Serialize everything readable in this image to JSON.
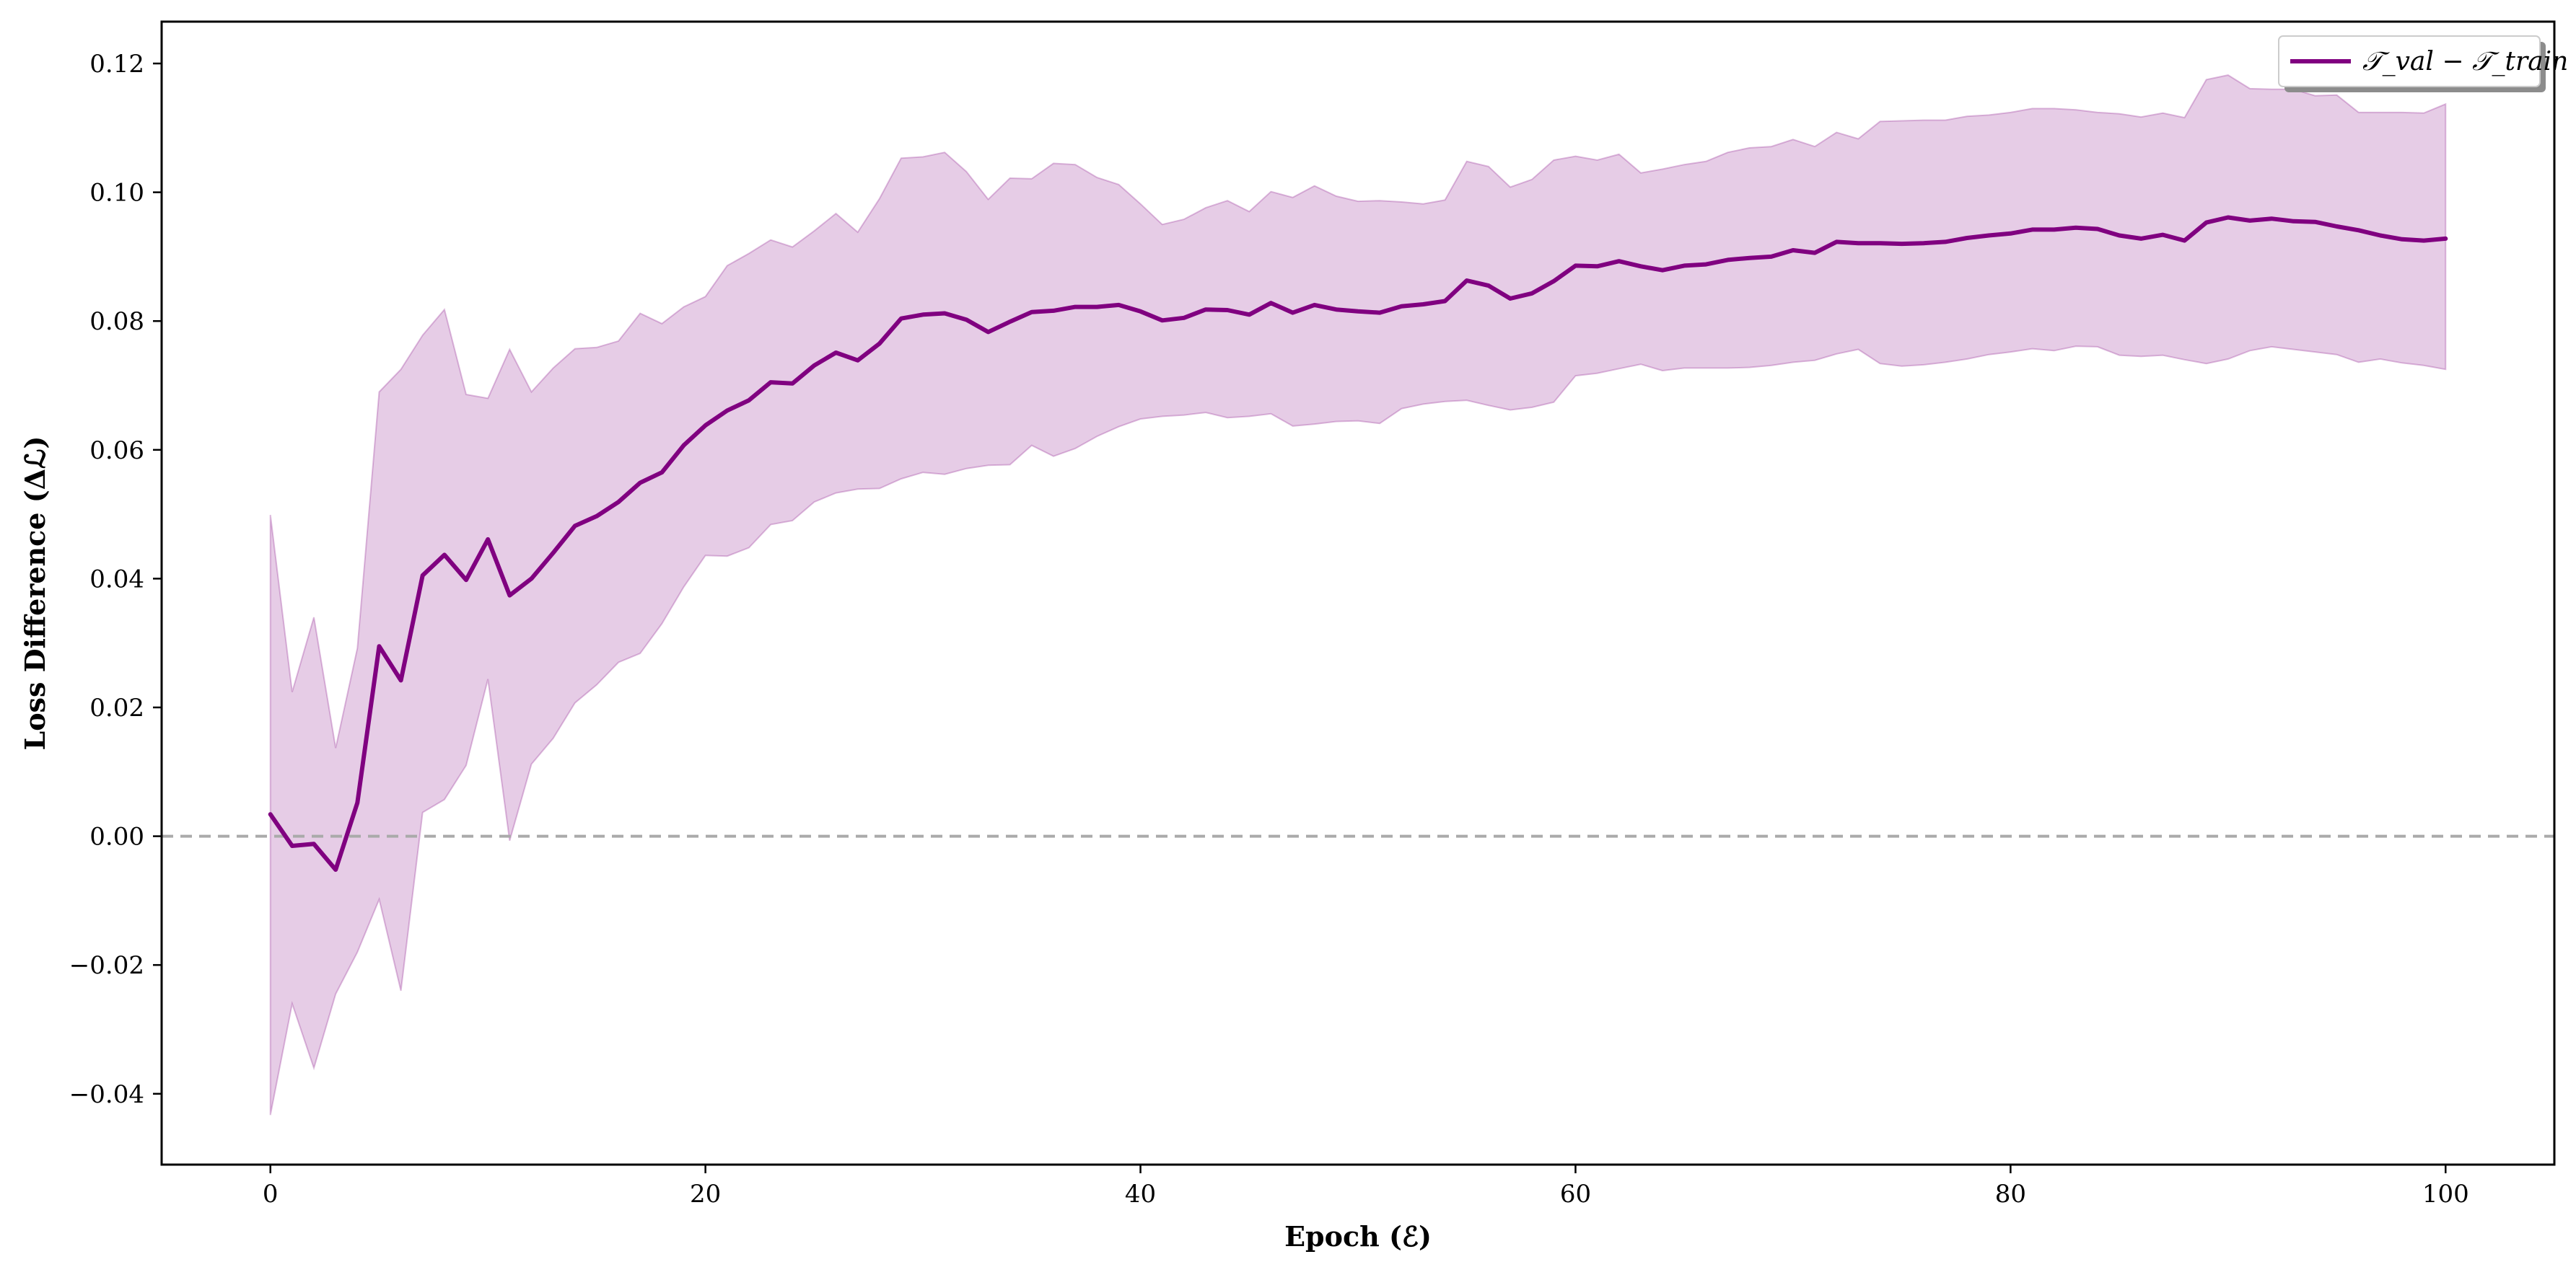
{
  "chart_data": {
    "type": "line",
    "title": "",
    "xlabel": "Epoch (ℰ)",
    "ylabel": "Loss Difference (Δℒ)",
    "xlim": [
      -5,
      105
    ],
    "ylim": [
      -0.051,
      0.1265
    ],
    "x_ticks": [
      0,
      20,
      40,
      60,
      80,
      100
    ],
    "x_tick_labels": [
      "0",
      "20",
      "40",
      "60",
      "80",
      "100"
    ],
    "y_ticks": [
      -0.04,
      -0.02,
      0.0,
      0.02,
      0.04,
      0.06,
      0.08,
      0.1,
      0.12
    ],
    "y_tick_labels": [
      "−0.04",
      "−0.02",
      "0.00",
      "0.02",
      "0.04",
      "0.06",
      "0.08",
      "0.10",
      "0.12"
    ],
    "grid": false,
    "legend_position": "top-right",
    "colors": {
      "line": "#800080",
      "band": "#800080",
      "band_opacity": 0.2,
      "reference": "#aaaaaa"
    },
    "reference_line": {
      "y": 0.0,
      "style": "dashed"
    },
    "series": [
      {
        "name": "𝒯_val − 𝒯_train",
        "x": [
          0,
          1,
          2,
          3,
          4,
          5,
          6,
          7,
          8,
          9,
          10,
          11,
          12,
          13,
          14,
          15,
          16,
          17,
          18,
          19,
          20,
          21,
          22,
          23,
          24,
          25,
          26,
          27,
          28,
          29,
          30,
          31,
          32,
          33,
          34,
          35,
          36,
          37,
          38,
          39,
          40,
          41,
          42,
          43,
          44,
          45,
          46,
          47,
          48,
          49,
          50,
          51,
          52,
          53,
          54,
          55,
          56,
          57,
          58,
          59,
          60,
          61,
          62,
          63,
          64,
          65,
          66,
          67,
          68,
          69,
          70,
          71,
          72,
          73,
          74,
          75,
          76,
          77,
          78,
          79,
          80,
          81,
          82,
          83,
          84,
          85,
          86,
          87,
          88,
          89,
          90,
          91,
          92,
          93,
          94,
          95,
          96,
          97,
          98,
          99,
          100
        ],
        "values": [
          0.0034,
          -0.0015,
          -0.0012,
          -0.0052,
          0.0052,
          0.0295,
          0.0242,
          0.0405,
          0.0437,
          0.0398,
          0.0461,
          0.0374,
          0.04,
          0.044,
          0.0482,
          0.0497,
          0.0519,
          0.0549,
          0.0565,
          0.0607,
          0.0638,
          0.0661,
          0.0677,
          0.0705,
          0.0703,
          0.0731,
          0.0751,
          0.0739,
          0.0765,
          0.0804,
          0.081,
          0.0812,
          0.0802,
          0.0783,
          0.0799,
          0.0814,
          0.0816,
          0.0822,
          0.0822,
          0.0825,
          0.0815,
          0.0801,
          0.0805,
          0.0818,
          0.0817,
          0.081,
          0.0828,
          0.0813,
          0.0825,
          0.0818,
          0.0815,
          0.0813,
          0.0823,
          0.0826,
          0.0831,
          0.0863,
          0.0855,
          0.0835,
          0.0843,
          0.0862,
          0.0886,
          0.0885,
          0.0893,
          0.0885,
          0.0879,
          0.0886,
          0.0888,
          0.0895,
          0.0898,
          0.09,
          0.091,
          0.0906,
          0.0923,
          0.0921,
          0.0921,
          0.092,
          0.0921,
          0.0923,
          0.0929,
          0.0933,
          0.0936,
          0.0942,
          0.0942,
          0.0945,
          0.0943,
          0.0933,
          0.0928,
          0.0934,
          0.0925,
          0.0953,
          0.0961,
          0.0956,
          0.0959,
          0.0955,
          0.0954,
          0.0947,
          0.0941,
          0.0933,
          0.0927,
          0.0925,
          0.0928
        ],
        "lower": [
          -0.0433,
          -0.026,
          -0.036,
          -0.0245,
          -0.018,
          -0.0098,
          -0.024,
          0.0037,
          0.0057,
          0.011,
          0.0244,
          -0.0007,
          0.0112,
          0.0152,
          0.0207,
          0.0235,
          0.027,
          0.0284,
          0.033,
          0.0387,
          0.0436,
          0.0435,
          0.0448,
          0.0484,
          0.049,
          0.0519,
          0.0533,
          0.0539,
          0.054,
          0.0555,
          0.0565,
          0.0562,
          0.0571,
          0.0576,
          0.0577,
          0.0607,
          0.059,
          0.0602,
          0.0621,
          0.0636,
          0.0648,
          0.0652,
          0.0654,
          0.0658,
          0.065,
          0.0652,
          0.0656,
          0.0637,
          0.064,
          0.0644,
          0.0645,
          0.0641,
          0.0664,
          0.0671,
          0.0675,
          0.0677,
          0.0669,
          0.0662,
          0.0666,
          0.0674,
          0.0715,
          0.0719,
          0.0726,
          0.0733,
          0.0723,
          0.0727,
          0.0727,
          0.0727,
          0.0728,
          0.0731,
          0.0736,
          0.0739,
          0.0749,
          0.0756,
          0.0734,
          0.073,
          0.0732,
          0.0736,
          0.0741,
          0.0748,
          0.0752,
          0.0757,
          0.0754,
          0.0761,
          0.076,
          0.0747,
          0.0745,
          0.0747,
          0.074,
          0.0734,
          0.0741,
          0.0754,
          0.076,
          0.0756,
          0.0752,
          0.0748,
          0.0736,
          0.0741,
          0.0735,
          0.0731,
          0.0725
        ],
        "upper": [
          0.0499,
          0.0224,
          0.034,
          0.0137,
          0.0292,
          0.069,
          0.0725,
          0.0778,
          0.0818,
          0.0686,
          0.068,
          0.0756,
          0.069,
          0.0727,
          0.0757,
          0.0759,
          0.0769,
          0.0812,
          0.0796,
          0.0822,
          0.0838,
          0.0886,
          0.0905,
          0.0926,
          0.0915,
          0.094,
          0.0967,
          0.0938,
          0.099,
          0.1053,
          0.1055,
          0.1062,
          0.1032,
          0.0989,
          0.1022,
          0.1021,
          0.1045,
          0.1043,
          0.1023,
          0.1012,
          0.0982,
          0.095,
          0.0958,
          0.0976,
          0.0987,
          0.097,
          0.1001,
          0.0992,
          0.101,
          0.0994,
          0.0986,
          0.0987,
          0.0985,
          0.0982,
          0.0988,
          0.1048,
          0.104,
          0.1008,
          0.102,
          0.105,
          0.1056,
          0.105,
          0.1059,
          0.103,
          0.1036,
          0.1043,
          0.1048,
          0.1062,
          0.1069,
          0.1071,
          0.1082,
          0.1071,
          0.1093,
          0.1083,
          0.111,
          0.1111,
          0.1112,
          0.1112,
          0.1118,
          0.112,
          0.1124,
          0.113,
          0.113,
          0.1128,
          0.1124,
          0.1122,
          0.1117,
          0.1123,
          0.1116,
          0.1175,
          0.1182,
          0.1161,
          0.116,
          0.116,
          0.115,
          0.1151,
          0.1124,
          0.1124,
          0.1124,
          0.1123,
          0.1137
        ]
      }
    ]
  }
}
